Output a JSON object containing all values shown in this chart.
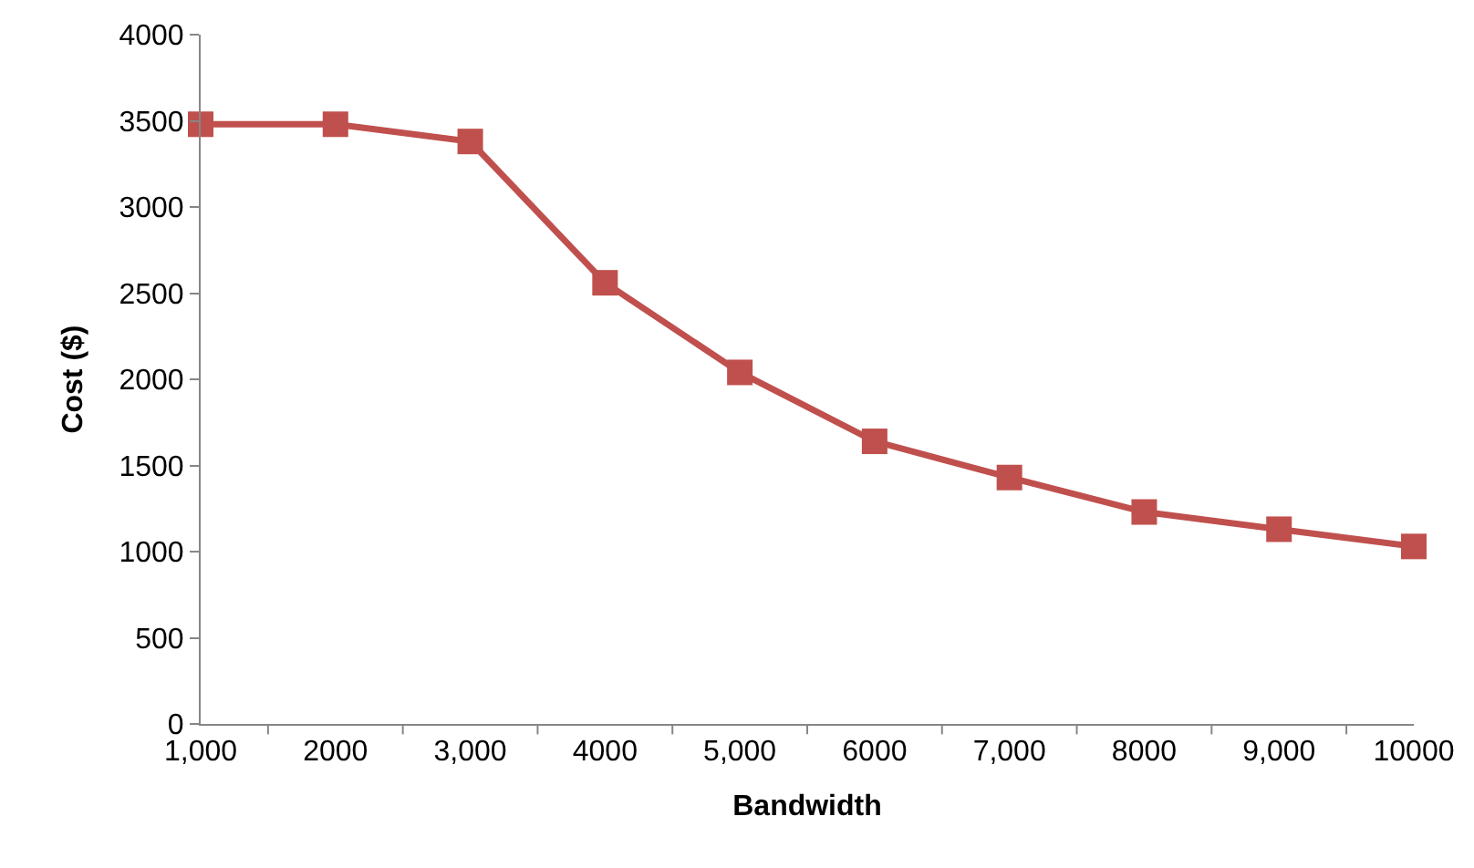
{
  "chart_data": {
    "type": "line",
    "xlabel": "Bandwidth",
    "ylabel": "Cost ($)",
    "categories": [
      "1,000",
      "2000",
      "3,000",
      "4000",
      "5,000",
      "6000",
      "7,000",
      "8000",
      "9,000",
      "10000"
    ],
    "series": [
      {
        "color": "#c0504d",
        "values": [
          3480,
          3480,
          3380,
          2560,
          2040,
          1640,
          1430,
          1230,
          1130,
          1030
        ]
      }
    ],
    "ylim": [
      0,
      4000
    ],
    "yticks": [
      0,
      500,
      1000,
      1500,
      2000,
      2500,
      3000,
      3500,
      4000
    ],
    "marker": "square",
    "line_style": "solid",
    "legend": false
  }
}
